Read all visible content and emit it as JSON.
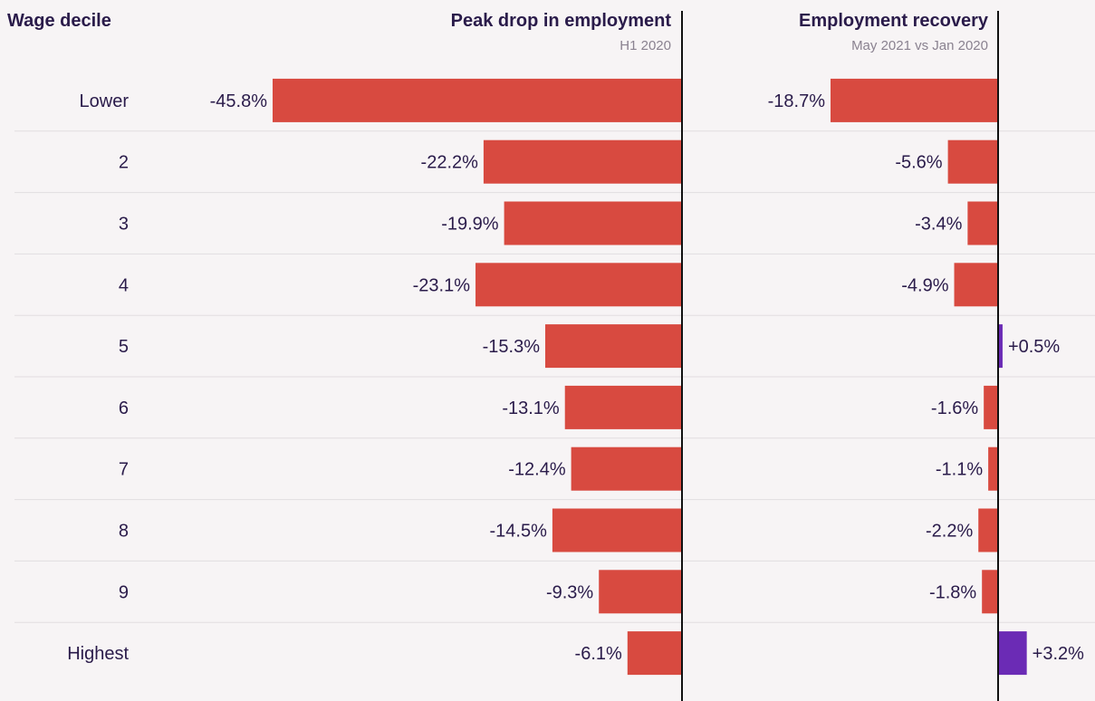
{
  "chart_data": {
    "type": "bar",
    "columns": {
      "category": "Wage decile",
      "left": {
        "title": "Peak drop in employment",
        "subtitle": "H1 2020"
      },
      "right": {
        "title": "Employment recovery",
        "subtitle": "May 2021 vs Jan 2020"
      }
    },
    "categories": [
      "Lower",
      "2",
      "3",
      "4",
      "5",
      "6",
      "7",
      "8",
      "9",
      "Highest"
    ],
    "series": [
      {
        "name": "Peak drop in employment",
        "values": [
          -45.8,
          -22.2,
          -19.9,
          -23.1,
          -15.3,
          -13.1,
          -12.4,
          -14.5,
          -9.3,
          -6.1
        ],
        "labels": [
          "-45.8%",
          "-22.2%",
          "-19.9%",
          "-23.1%",
          "-15.3%",
          "-13.1%",
          "-12.4%",
          "-14.5%",
          "-9.3%",
          "-6.1%"
        ]
      },
      {
        "name": "Employment recovery",
        "values": [
          -18.7,
          -5.6,
          -3.4,
          -4.9,
          0.5,
          -1.6,
          -1.1,
          -2.2,
          -1.8,
          3.2
        ],
        "labels": [
          "-18.7%",
          "-5.6%",
          "-3.4%",
          "-4.9%",
          "+0.5%",
          "-1.6%",
          "-1.1%",
          "-2.2%",
          "-1.8%",
          "+3.2%"
        ]
      }
    ],
    "colors": {
      "negative": "#d84a40",
      "positive": "#6b2bb5",
      "axis": "#111111",
      "gridline": "#e2dde0",
      "text": "#2a1b4a",
      "subtitle": "#8a8290"
    },
    "grid": true
  }
}
